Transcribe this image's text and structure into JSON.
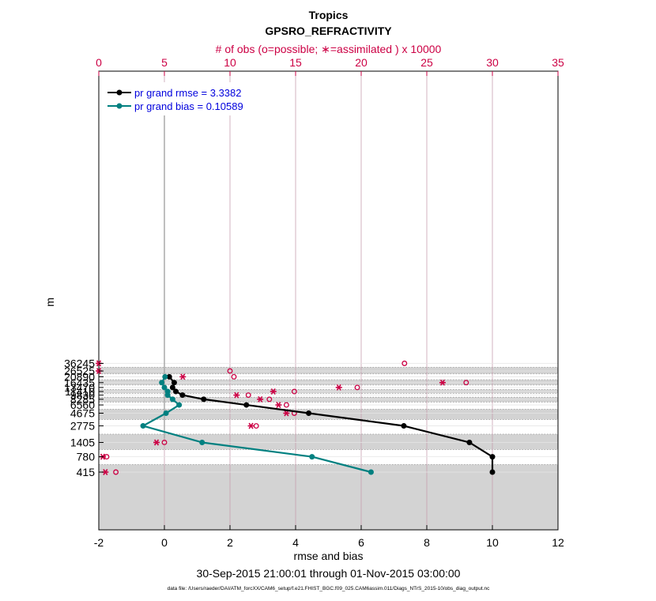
{
  "chart_data": {
    "type": "line",
    "title": "Tropics",
    "subtitle": "GPSRO_REFRACTIVITY",
    "top_axis_label": "# of obs (o=possible; ∗=assimilated ) x 10000",
    "xlabel": "rmse and bias",
    "ylabel": "m",
    "date_range": "30-Sep-2015 21:00:01 through 01-Nov-2015 03:00:00",
    "footnote": "data file: /Users/raeder/DAI/ATM_forcXX/CAM6_setup/f.e21.FHIST_BGC.f09_025.CAM6assim.011/Diags_NTrS_2015-10/obs_diag_output.nc",
    "xlim": [
      -2,
      12
    ],
    "xticks": [
      -2,
      0,
      2,
      4,
      6,
      8,
      10,
      12
    ],
    "obs_xlim": [
      0,
      35
    ],
    "obs_ticks": [
      0,
      5,
      10,
      15,
      20,
      25,
      30,
      35
    ],
    "levels": [
      36245,
      26525,
      20890,
      16435,
      13470,
      11410,
      9830,
      8285,
      6560,
      4675,
      2775,
      1405,
      780,
      415
    ],
    "rmse": [
      null,
      null,
      0.15,
      0.3,
      0.25,
      0.35,
      0.55,
      1.2,
      2.5,
      4.4,
      7.3,
      9.3,
      10.0,
      10.0
    ],
    "bias": [
      null,
      null,
      0.02,
      -0.08,
      0.0,
      0.1,
      0.1,
      0.25,
      0.45,
      0.05,
      -0.65,
      1.15,
      4.5,
      6.3
    ],
    "obs_possible": [
      23.3,
      10.0,
      10.3,
      28.0,
      19.7,
      14.9,
      11.4,
      13.0,
      14.3,
      14.9,
      12.0,
      5.0,
      0.6,
      1.3
    ],
    "obs_assimilated": [
      0.0,
      0.0,
      6.4,
      26.2,
      18.3,
      13.3,
      10.5,
      12.3,
      13.7,
      14.3,
      11.6,
      4.4,
      0.3,
      0.5
    ],
    "series": [
      {
        "name": "rmse",
        "legend": "pr grand rmse = 3.3382",
        "color": "#000000"
      },
      {
        "name": "bias",
        "legend": "pr grand bias = 0.10589",
        "color": "#008080"
      }
    ],
    "colors": {
      "obs": "#cc0044",
      "legend_text": "#0000dd",
      "band": "#d3d3d3"
    }
  }
}
